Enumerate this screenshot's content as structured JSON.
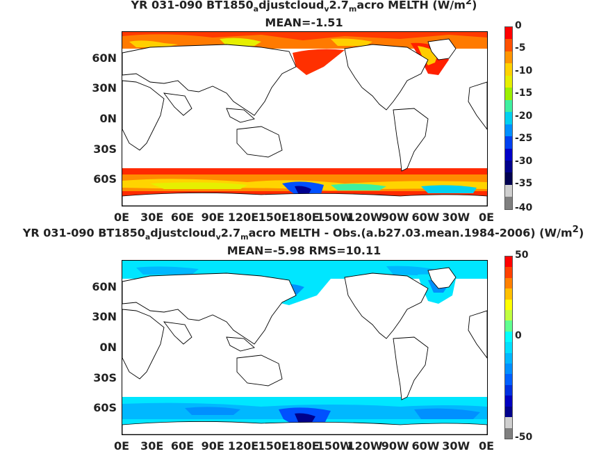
{
  "plot1": {
    "title_pre": "YR 031-090 BT1850",
    "title_sub1": "a",
    "title_mid1": "djustcloud",
    "title_sub2": "v",
    "title_mid2": "2.7",
    "title_sub3": "m",
    "title_post": "acro  MELTH (W/m",
    "title_sup": "2",
    "title_end": ")",
    "subtitle": "MEAN=-1.51",
    "colorbar_ticks": [
      "0",
      "-5",
      "-10",
      "-15",
      "-20",
      "-25",
      "-30",
      "-35",
      "-40"
    ],
    "colorbar_colors": [
      "#ff0000",
      "#ff5000",
      "#ff9500",
      "#ffd200",
      "#e6ef00",
      "#9cf000",
      "#3ff0a0",
      "#00d0f0",
      "#0090ff",
      "#0040f0",
      "#0000c8",
      "#00008b",
      "#000050",
      "#cfcfcf",
      "#7f7f7f"
    ]
  },
  "plot2": {
    "title_pre": "YR 031-090 BT1850",
    "title_sub1": "a",
    "title_mid1": "djustcloud",
    "title_sub2": "v",
    "title_mid2": "2.7",
    "title_sub3": "m",
    "title_post": "acro MELTH - Obs.(a.b27.03.mean.1984-2006) (W/m",
    "title_sup": "2",
    "title_end": ")",
    "subtitle": "MEAN=-5.98 RMS=10.11",
    "colorbar_ticks": [
      "50",
      "0",
      "-50"
    ],
    "colorbar_colors": [
      "#ff0000",
      "#ff4000",
      "#ff8000",
      "#ffc000",
      "#ffff00",
      "#c0ff40",
      "#60ff90",
      "#00ffff",
      "#00e0ff",
      "#00b8ff",
      "#0090ff",
      "#0060ff",
      "#0030e0",
      "#0000c0",
      "#00008b",
      "#cfcfcf",
      "#7f7f7f"
    ]
  },
  "axes": {
    "lat_labels": [
      "60N",
      "30N",
      "0N",
      "30S",
      "60S"
    ],
    "lon_labels": [
      "0E",
      "30E",
      "60E",
      "90E",
      "120E",
      "150E",
      "180E",
      "150W",
      "120W",
      "90W",
      "60W",
      "30W",
      "0E"
    ]
  }
}
